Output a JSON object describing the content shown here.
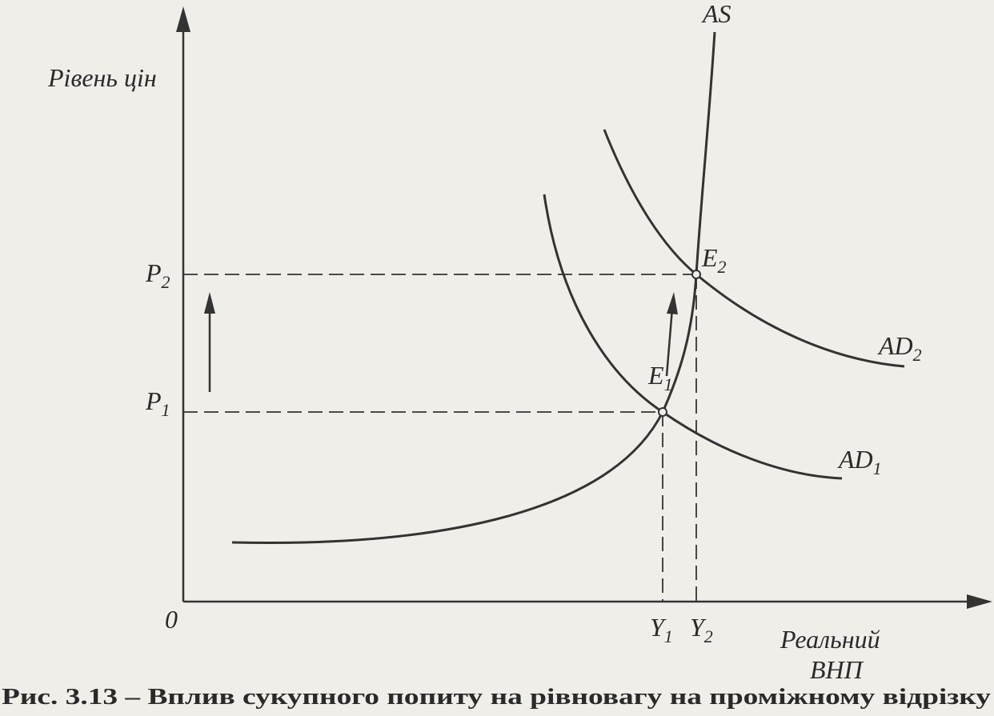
{
  "diagram": {
    "y_axis_label": "Рівень цін",
    "origin": "0",
    "x_axis_label": [
      "Реальний",
      "ВНП"
    ],
    "curves": {
      "as": {
        "label": "AS"
      },
      "ad1": {
        "label": "AD",
        "sub": "1"
      },
      "ad2": {
        "label": "AD",
        "sub": "2"
      }
    },
    "points": {
      "e1": {
        "label": "E",
        "sub": "1"
      },
      "e2": {
        "label": "E",
        "sub": "2"
      }
    },
    "levels": {
      "p1": {
        "label": "P",
        "sub": "1"
      },
      "p2": {
        "label": "P",
        "sub": "2"
      },
      "y1": {
        "label": "Y",
        "sub": "1"
      },
      "y2": {
        "label": "Y",
        "sub": "2"
      }
    },
    "caption": "Рис. 3.13 – Вплив сукупного попиту на рівновагу на проміжному відрізку"
  }
}
